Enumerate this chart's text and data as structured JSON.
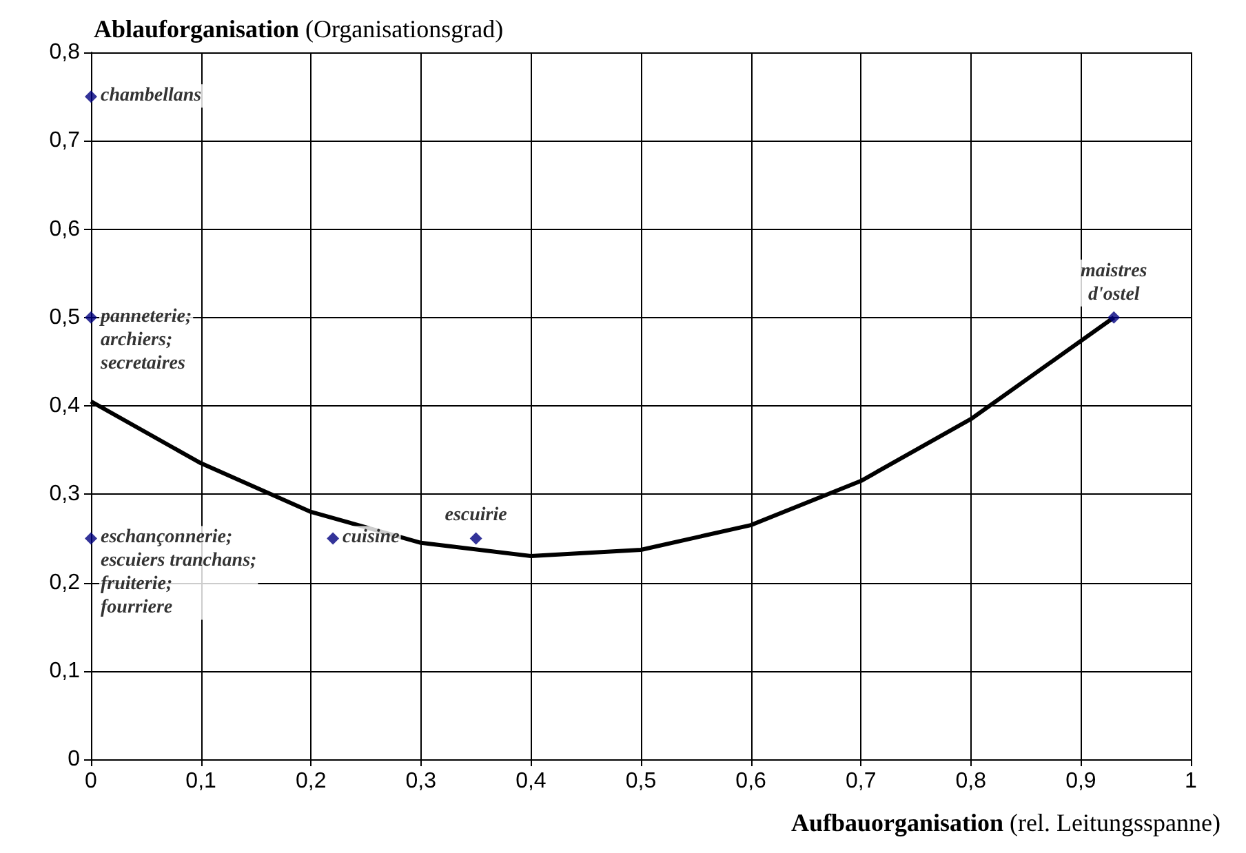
{
  "chart_data": {
    "type": "scatter",
    "ylabel": "Ablauforganisation (Organisationsgrad)",
    "xlabel": "Aufbauorganisation (rel. Leitungsspanne)",
    "xlim": [
      0,
      1
    ],
    "xticks": [
      0,
      {
        "value": 0.1,
        "label": "0,1"
      },
      {
        "value": 0.2,
        "label": "0,2"
      },
      {
        "value": 0.3,
        "label": "0,3"
      },
      {
        "value": 0.4,
        "label": "0,4"
      },
      {
        "value": 0.5,
        "label": "0,5"
      },
      {
        "value": 0.6,
        "label": "0,6"
      },
      {
        "value": 0.7,
        "label": "0,7"
      },
      {
        "value": 0.8,
        "label": "0,8"
      },
      {
        "value": 0.9,
        "label": "0,9"
      },
      1
    ],
    "ylim": [
      0,
      0.8
    ],
    "yticks": [
      0,
      {
        "value": 0.1,
        "label": "0,1"
      },
      {
        "value": 0.2,
        "label": "0,2"
      },
      {
        "value": 0.3,
        "label": "0,3"
      },
      {
        "value": 0.4,
        "label": "0,4"
      },
      {
        "value": 0.5,
        "label": "0,5"
      },
      {
        "value": 0.6,
        "label": "0,6"
      },
      {
        "value": 0.7,
        "label": "0,7"
      },
      {
        "value": 0.8,
        "label": "0,8"
      }
    ],
    "grid": true,
    "marker": "diamond",
    "series": [
      {
        "color": "#000080",
        "x": [
          0,
          0,
          0,
          0.22,
          0.35,
          0.93
        ],
        "values": [
          0.75,
          0.5,
          0.25,
          0.25,
          0.25,
          0.5
        ]
      },
      {
        "type": "line",
        "marker": "none",
        "color": "#000000",
        "x": [
          0,
          0.1,
          0.2,
          0.3,
          0.4,
          0.5,
          0.6,
          0.7,
          0.8,
          0.93
        ],
        "values": [
          0.405,
          0.335,
          0.28,
          0.245,
          0.23,
          0.237,
          0.265,
          0.315,
          0.385,
          0.5
        ]
      }
    ],
    "annotations": [
      {
        "text": "chambellans",
        "x": 0,
        "y": 0.75
      },
      {
        "text": "panneterie;\narchiers;\nsecretaires",
        "x": 0,
        "y": 0.5
      },
      {
        "text": "eschançonnerie;\nescuiers tranchans;\nfruiterie;\nfourriere",
        "x": 0,
        "y": 0.25
      },
      {
        "text": "cuisine",
        "x": 0.22,
        "y": 0.25
      },
      {
        "text": "escuirie",
        "x": 0.35,
        "y": 0.25
      },
      {
        "text": "maistres\nd'ostel",
        "x": 0.93,
        "y": 0.5
      }
    ]
  }
}
